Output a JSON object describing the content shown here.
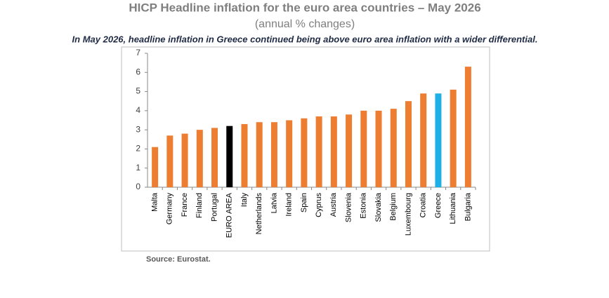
{
  "chart_data": {
    "type": "bar",
    "title": "HICP Headline inflation for the euro area countries – May 2026",
    "subtitle": "(annual % changes)",
    "annotation": "In May 2026, headline inflation in Greece continued being above euro area inflation with a wider differential.",
    "source": "Source: Eurostat.",
    "categories": [
      "Malta",
      "Germany",
      "France",
      "Finland",
      "Portugal",
      "EURO AREA",
      "Italy",
      "Netherlands",
      "Latvia",
      "Ireland",
      "Spain",
      "Cyprus",
      "Austria",
      "Slovenia",
      "Estonia",
      "Slovakia",
      "Belgium",
      "Luxembourg",
      "Croatia",
      "Greece",
      "Lithuania",
      "Bulgaria"
    ],
    "values": [
      2.1,
      2.7,
      2.8,
      3.0,
      3.1,
      3.2,
      3.3,
      3.4,
      3.4,
      3.5,
      3.6,
      3.7,
      3.7,
      3.8,
      4.0,
      4.0,
      4.1,
      4.5,
      4.9,
      4.9,
      5.1,
      6.3
    ],
    "colors": [
      "#ed7d31",
      "#ed7d31",
      "#ed7d31",
      "#ed7d31",
      "#ed7d31",
      "#000000",
      "#ed7d31",
      "#ed7d31",
      "#ed7d31",
      "#ed7d31",
      "#ed7d31",
      "#ed7d31",
      "#ed7d31",
      "#ed7d31",
      "#ed7d31",
      "#ed7d31",
      "#ed7d31",
      "#ed7d31",
      "#ed7d31",
      "#1fb0e6",
      "#ed7d31",
      "#ed7d31"
    ],
    "ylim": [
      0,
      7
    ],
    "yticks": [
      0,
      1,
      2,
      3,
      4,
      5,
      6,
      7
    ],
    "grid": false
  }
}
